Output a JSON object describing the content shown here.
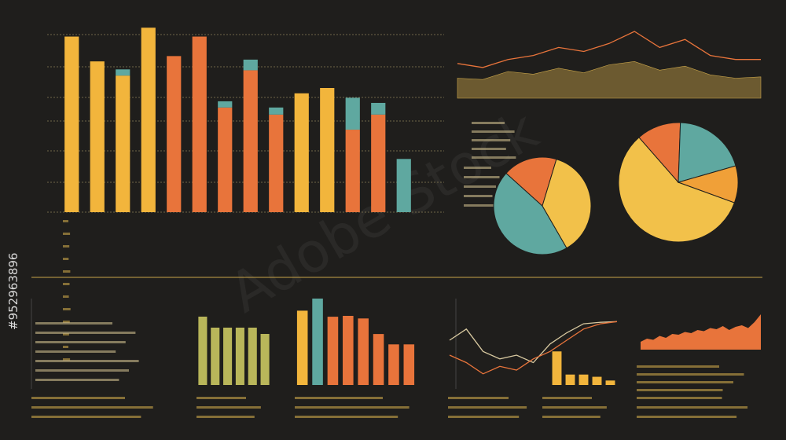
{
  "side_id": "#952963896",
  "watermark": "Adobe Stock",
  "chart_data": [
    {
      "type": "bar",
      "stacked": true,
      "categories": [
        null,
        null,
        null,
        null,
        null,
        null,
        null,
        null,
        null,
        null,
        null,
        null,
        null,
        null
      ],
      "ylim": [
        0,
        105
      ],
      "series": [
        {
          "color": "#f2b53c",
          "values": [
            99,
            85,
            77,
            104,
            null,
            null,
            null,
            null,
            null,
            67,
            70,
            null,
            null,
            null
          ]
        },
        {
          "color": "#e8743b",
          "values": [
            null,
            null,
            null,
            null,
            88,
            99,
            59,
            80,
            55,
            null,
            null,
            46.5,
            55,
            null
          ]
        },
        {
          "color": "#5fa8a0",
          "values": [
            null,
            null,
            3.5,
            null,
            null,
            null,
            3.5,
            6,
            4,
            null,
            null,
            18,
            6.6,
            30
          ]
        }
      ]
    },
    {
      "type": "line",
      "ylim": [
        0,
        100
      ],
      "series": [
        {
          "color": "#e8743b",
          "values": [
            52,
            46,
            58,
            64,
            76,
            70,
            82,
            100,
            76,
            88,
            64,
            58,
            58
          ]
        },
        {
          "color": "#c9a54a",
          "area": true,
          "values": [
            30,
            28,
            40,
            36,
            45,
            38,
            50,
            55,
            42,
            48,
            35,
            30,
            32
          ]
        }
      ]
    },
    {
      "type": "pie",
      "values": [
        45,
        18,
        37
      ],
      "colors": [
        "#5fa8a0",
        "#e8743b",
        "#f2c14a"
      ],
      "start": 60
    },
    {
      "type": "pie",
      "values": [
        58,
        12,
        20,
        10
      ],
      "colors": [
        "#f2c14a",
        "#e8743b",
        "#5fa8a0",
        "#f0a038"
      ],
      "start": 20
    },
    {
      "type": "bar",
      "ylim": [
        0,
        100
      ],
      "values": [
        87,
        73,
        73,
        73,
        73,
        65
      ],
      "colors": [
        "#b9b65a",
        "#b9b65a",
        "#b9b65a",
        "#b9b65a",
        "#b9b65a",
        "#b9b65a"
      ]
    },
    {
      "type": "bar",
      "ylim": [
        0,
        100
      ],
      "values": [
        86,
        100,
        79,
        80,
        77,
        59,
        47,
        47
      ],
      "colors": [
        "#f2b53c",
        "#5fa8a0",
        "#e8743b",
        "#e8743b",
        "#e8743b",
        "#e8743b",
        "#e8743b",
        "#e8743b"
      ]
    },
    {
      "type": "line",
      "ylim": [
        0,
        100
      ],
      "series": [
        {
          "color": "#d8c9a0",
          "values": [
            60,
            75,
            45,
            35,
            40,
            30,
            55,
            70,
            82,
            84,
            85
          ]
        },
        {
          "color": "#e8743b",
          "values": [
            40,
            30,
            15,
            25,
            20,
            35,
            45,
            60,
            75,
            82,
            85
          ]
        }
      ]
    },
    {
      "type": "bar",
      "ylim": [
        0,
        100
      ],
      "values": [
        45,
        14,
        14,
        11,
        6
      ],
      "colors": [
        "#f2b53c",
        "#f2b53c",
        "#f2b53c",
        "#f2b53c",
        "#f2b53c"
      ]
    },
    {
      "type": "area",
      "ylim": [
        0,
        100
      ],
      "color": "#e8743b",
      "values": [
        20,
        28,
        25,
        35,
        30,
        40,
        38,
        45,
        42,
        50,
        47,
        55,
        52,
        60,
        50,
        58,
        62,
        55,
        70,
        90
      ]
    }
  ]
}
